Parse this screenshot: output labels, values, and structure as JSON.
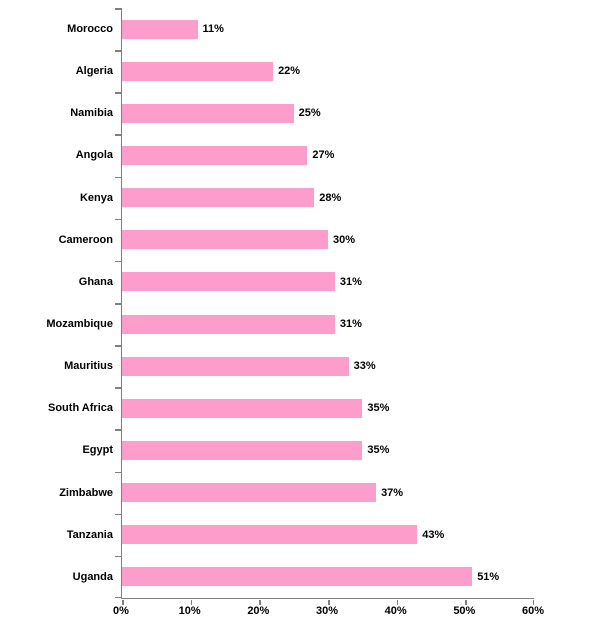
{
  "chart_data": {
    "type": "bar",
    "orientation": "horizontal",
    "title": "",
    "xlabel": "",
    "ylabel": "",
    "categories": [
      "Morocco",
      "Algeria",
      "Namibia",
      "Angola",
      "Kenya",
      "Cameroon",
      "Ghana",
      "Mozambique",
      "Mauritius",
      "South Africa",
      "Egypt",
      "Zimbabwe",
      "Tanzania",
      "Uganda"
    ],
    "values": [
      11,
      22,
      25,
      27,
      28,
      30,
      31,
      31,
      33,
      35,
      35,
      37,
      43,
      51
    ],
    "value_labels": [
      "11%",
      "22%",
      "25%",
      "27%",
      "28%",
      "30%",
      "31%",
      "31%",
      "33%",
      "35%",
      "35%",
      "37%",
      "43%",
      "51%"
    ],
    "xlim": [
      0,
      60
    ],
    "x_tick_step": 10,
    "x_tick_labels": [
      "0%",
      "10%",
      "20%",
      "30%",
      "40%",
      "50%",
      "60%"
    ],
    "grid": false,
    "legend": false,
    "bar_color": "#FC9DCC",
    "axis_color": "#808080",
    "text_color": "#000000",
    "background": "#FFFFFF"
  }
}
